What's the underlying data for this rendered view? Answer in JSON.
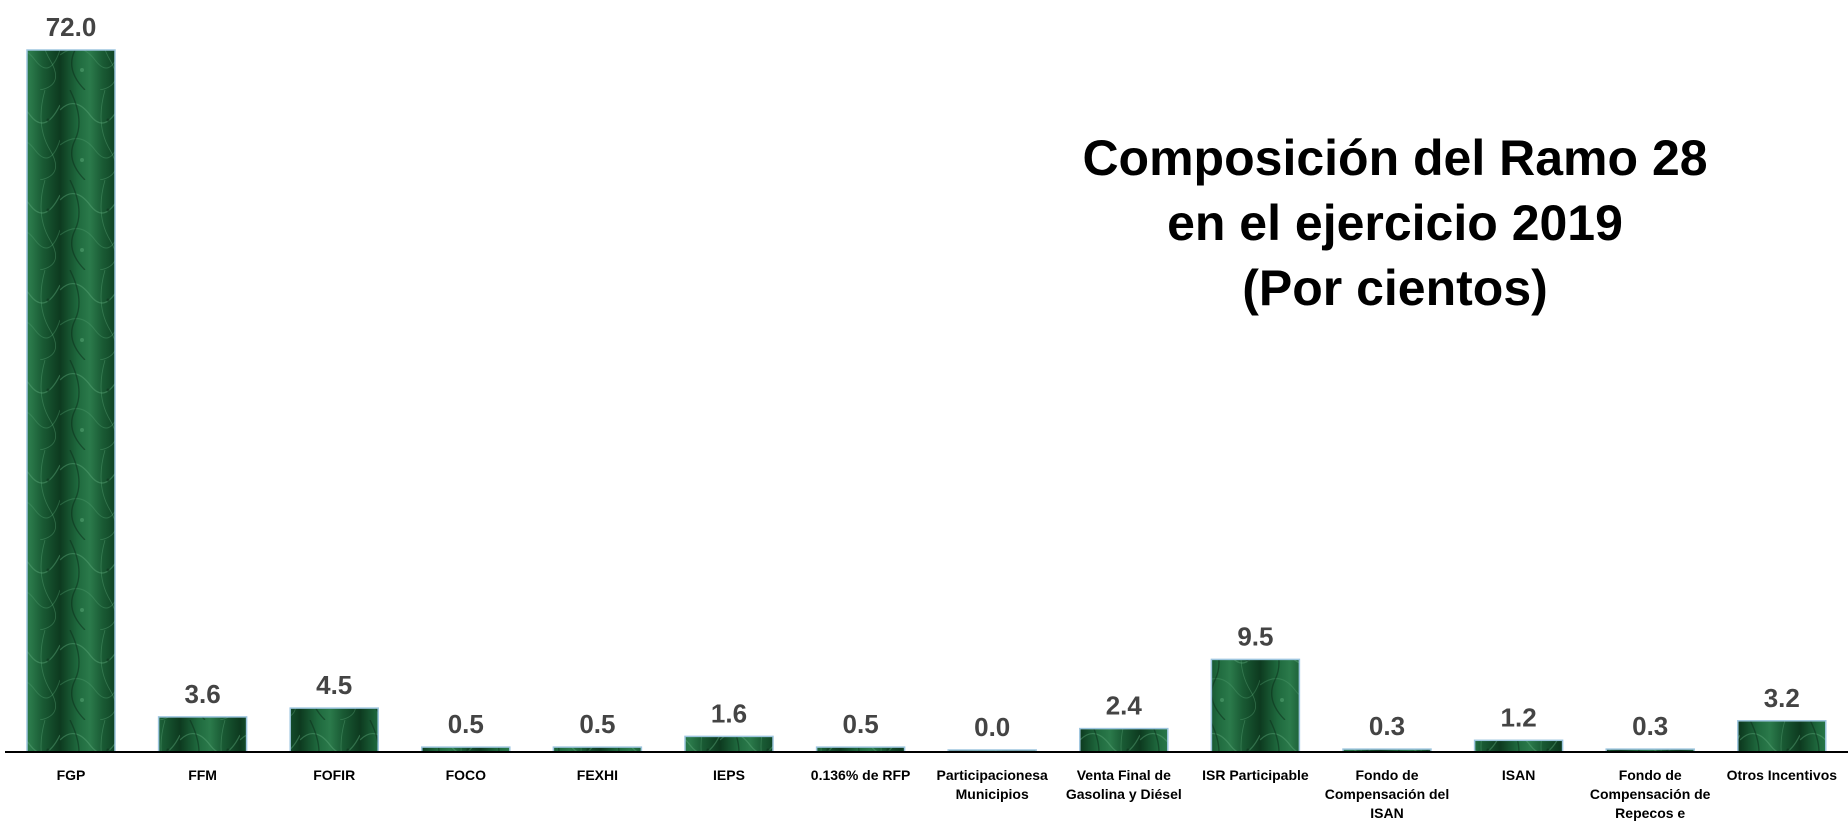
{
  "chart_data": {
    "type": "bar",
    "title_lines": [
      "Composición del Ramo 28",
      "en el ejercicio 2019",
      "(Por cientos)"
    ],
    "xlabel": "",
    "ylabel": "",
    "categories": [
      [
        "FGP"
      ],
      [
        "FFM"
      ],
      [
        "FOFIR"
      ],
      [
        "FOCO"
      ],
      [
        "FEXHI"
      ],
      [
        "IEPS"
      ],
      [
        "0.136% de RFP"
      ],
      [
        "Participacionesa",
        "Municipios"
      ],
      [
        "Venta Final de",
        "Gasolina y Diésel"
      ],
      [
        "ISR Participable"
      ],
      [
        "Fondo de",
        "Compensación del",
        "ISAN"
      ],
      [
        "ISAN"
      ],
      [
        "Fondo de",
        "Compensación de",
        "Repecos e"
      ],
      [
        "Otros Incentivos"
      ]
    ],
    "values": [
      72.0,
      3.6,
      4.5,
      0.5,
      0.5,
      1.6,
      0.5,
      0.0,
      2.4,
      9.5,
      0.3,
      1.2,
      0.3,
      3.2
    ],
    "value_labels": [
      "72.0",
      "3.6",
      "4.5",
      "0.5",
      "0.5",
      "1.6",
      "0.5",
      "0.0",
      "2.4",
      "9.5",
      "0.3",
      "1.2",
      "0.3",
      "3.2"
    ],
    "ylim": [
      0,
      72
    ],
    "grid": false,
    "legend": "none",
    "colors": {
      "bar_dark": "#0d3a1f",
      "bar_mid": "#1f6a3e",
      "bar_light": "#3f8c5a",
      "bar_border": "#9ec6df",
      "axis": "#000000",
      "value_text": "#444444"
    }
  }
}
